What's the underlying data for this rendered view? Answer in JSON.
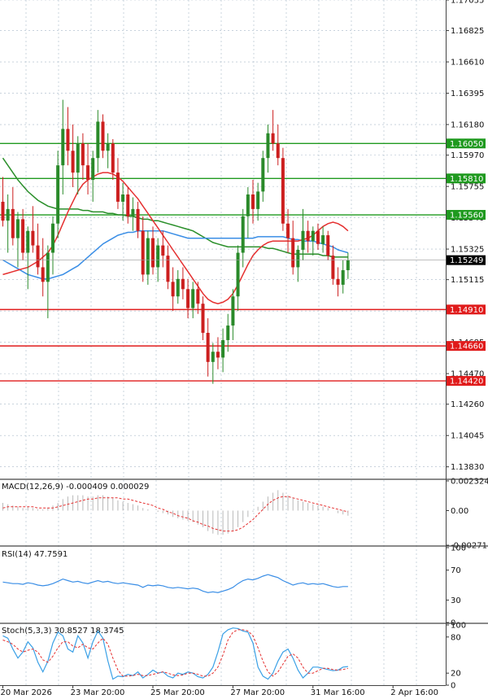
{
  "colors": {
    "bull": "#2a8a2a",
    "bear": "#cc1f1f",
    "ma_red": "#e53030",
    "ma_blue": "#3a8ee6",
    "ma_green": "#2a8f2a",
    "support": "#e01b1b",
    "resistance": "#1f9a1f",
    "current": "#000000",
    "grid": "#a8b8c8",
    "macd_hist": "#b8b8b8",
    "macd_signal": "#e53030",
    "rsi_line": "#3a8ee6",
    "stoch_main": "#3aa0e6",
    "stoch_signal": "#e53030"
  },
  "chart_data": [
    {
      "type": "candlestick",
      "ylim": [
        1.1375,
        1.17035
      ],
      "y_ticks": [
        "1.17035",
        "1.16825",
        "1.16610",
        "1.16395",
        "1.16180",
        "1.15970",
        "1.15755",
        "1.15540",
        "1.15325",
        "1.15115",
        "1.14900",
        "1.14685",
        "1.14470",
        "1.14260",
        "1.14045",
        "1.13830"
      ],
      "x_labels": [
        "20 Mar 2026",
        "23 Mar 20:00",
        "25 Mar 20:00",
        "27 Mar 20:00",
        "31 Mar 16:00",
        "2 Apr 16:00"
      ],
      "x_label_index": [
        0,
        14,
        30,
        46,
        62,
        78
      ],
      "current_price": "1.15249",
      "levels": [
        {
          "label": "1.16050",
          "value": 1.1605,
          "kind": "resistance"
        },
        {
          "label": "1.15810",
          "value": 1.1581,
          "kind": "resistance"
        },
        {
          "label": "1.15560",
          "value": 1.1556,
          "kind": "resistance"
        },
        {
          "label": "1.14910",
          "value": 1.1491,
          "kind": "support"
        },
        {
          "label": "1.14660",
          "value": 1.1466,
          "kind": "support"
        },
        {
          "label": "1.14420",
          "value": 1.1442,
          "kind": "support"
        }
      ],
      "candles": [
        [
          1.1565,
          1.1582,
          1.1548,
          1.1552
        ],
        [
          1.1552,
          1.157,
          1.153,
          1.156
        ],
        [
          1.156,
          1.1575,
          1.1535,
          1.154
        ],
        [
          1.154,
          1.1558,
          1.152,
          1.1553
        ],
        [
          1.1553,
          1.156,
          1.1525,
          1.153
        ],
        [
          1.153,
          1.1548,
          1.1505,
          1.1545
        ],
        [
          1.1545,
          1.1562,
          1.153,
          1.1535
        ],
        [
          1.1535,
          1.155,
          1.1515,
          1.152
        ],
        [
          1.152,
          1.154,
          1.15,
          1.151
        ],
        [
          1.151,
          1.1535,
          1.1485,
          1.153
        ],
        [
          1.153,
          1.1555,
          1.1515,
          1.155
        ],
        [
          1.155,
          1.16,
          1.154,
          1.159
        ],
        [
          1.159,
          1.1635,
          1.157,
          1.1615
        ],
        [
          1.1615,
          1.163,
          1.159,
          1.16
        ],
        [
          1.16,
          1.1618,
          1.1575,
          1.1585
        ],
        [
          1.1585,
          1.161,
          1.157,
          1.1605
        ],
        [
          1.1605,
          1.1612,
          1.158,
          1.159
        ],
        [
          1.159,
          1.1605,
          1.157,
          1.158
        ],
        [
          1.158,
          1.16,
          1.1565,
          1.1595
        ],
        [
          1.1595,
          1.1628,
          1.1585,
          1.162
        ],
        [
          1.162,
          1.1625,
          1.1595,
          1.16
        ],
        [
          1.16,
          1.1612,
          1.1588,
          1.1605
        ],
        [
          1.1605,
          1.1608,
          1.158,
          1.1585
        ],
        [
          1.1585,
          1.1595,
          1.156,
          1.1565
        ],
        [
          1.1565,
          1.1578,
          1.1552,
          1.157
        ],
        [
          1.157,
          1.1575,
          1.155,
          1.1555
        ],
        [
          1.1555,
          1.1568,
          1.1545,
          1.156
        ],
        [
          1.156,
          1.1565,
          1.154,
          1.1545
        ],
        [
          1.1545,
          1.1555,
          1.151,
          1.1515
        ],
        [
          1.1515,
          1.1545,
          1.1508,
          1.154
        ],
        [
          1.154,
          1.1548,
          1.1515,
          1.152
        ],
        [
          1.152,
          1.154,
          1.151,
          1.1535
        ],
        [
          1.1535,
          1.1545,
          1.152,
          1.1528
        ],
        [
          1.1528,
          1.1535,
          1.1505,
          1.151
        ],
        [
          1.151,
          1.152,
          1.149,
          1.15
        ],
        [
          1.15,
          1.1518,
          1.1495,
          1.1512
        ],
        [
          1.1512,
          1.152,
          1.1498,
          1.1505
        ],
        [
          1.1505,
          1.1512,
          1.1485,
          1.1492
        ],
        [
          1.1492,
          1.151,
          1.1485,
          1.1505
        ],
        [
          1.1505,
          1.151,
          1.1488,
          1.1495
        ],
        [
          1.1495,
          1.15,
          1.147,
          1.1475
        ],
        [
          1.1475,
          1.1485,
          1.1445,
          1.1455
        ],
        [
          1.1455,
          1.1468,
          1.144,
          1.1462
        ],
        [
          1.1462,
          1.1472,
          1.145,
          1.1458
        ],
        [
          1.1458,
          1.1478,
          1.1448,
          1.147
        ],
        [
          1.147,
          1.1488,
          1.1462,
          1.148
        ],
        [
          1.148,
          1.1505,
          1.147,
          1.15
        ],
        [
          1.15,
          1.1535,
          1.149,
          1.153
        ],
        [
          1.153,
          1.156,
          1.152,
          1.1555
        ],
        [
          1.1555,
          1.1575,
          1.154,
          1.157
        ],
        [
          1.157,
          1.158,
          1.155,
          1.156
        ],
        [
          1.156,
          1.1578,
          1.1552,
          1.1572
        ],
        [
          1.1572,
          1.16,
          1.1565,
          1.1595
        ],
        [
          1.1595,
          1.1618,
          1.1585,
          1.1612
        ],
        [
          1.1612,
          1.1628,
          1.16,
          1.1605
        ],
        [
          1.1605,
          1.1618,
          1.159,
          1.1595
        ],
        [
          1.1595,
          1.1602,
          1.1545,
          1.155
        ],
        [
          1.155,
          1.156,
          1.153,
          1.154
        ],
        [
          1.154,
          1.1552,
          1.1515,
          1.152
        ],
        [
          1.152,
          1.1535,
          1.151,
          1.1532
        ],
        [
          1.1532,
          1.156,
          1.1525,
          1.1545
        ],
        [
          1.1545,
          1.1552,
          1.153,
          1.1538
        ],
        [
          1.1538,
          1.1548,
          1.1528,
          1.1545
        ],
        [
          1.1545,
          1.155,
          1.1532,
          1.1536
        ],
        [
          1.1536,
          1.1548,
          1.153,
          1.1542
        ],
        [
          1.1542,
          1.1545,
          1.1525,
          1.1528
        ],
        [
          1.1528,
          1.1535,
          1.1508,
          1.1512
        ],
        [
          1.1512,
          1.152,
          1.15,
          1.1508
        ],
        [
          1.1508,
          1.1525,
          1.1502,
          1.1518
        ],
        [
          1.1518,
          1.153,
          1.1512,
          1.1525
        ]
      ],
      "moving_averages": [
        {
          "color": "ma_green",
          "values": [
            1.1595,
            1.159,
            1.1585,
            1.158,
            1.1576,
            1.1572,
            1.1569,
            1.1566,
            1.1564,
            1.1562,
            1.1561,
            1.156,
            1.156,
            1.156,
            1.156,
            1.156,
            1.1559,
            1.1559,
            1.1558,
            1.1558,
            1.1558,
            1.1557,
            1.1557,
            1.1556,
            1.1556,
            1.1555,
            1.1555,
            1.1554,
            1.1553,
            1.1553,
            1.1552,
            1.1552,
            1.1551,
            1.155,
            1.1549,
            1.1548,
            1.1547,
            1.1546,
            1.1545,
            1.1543,
            1.1541,
            1.1539,
            1.1537,
            1.1536,
            1.1535,
            1.1534,
            1.1534,
            1.1534,
            1.1534,
            1.1534,
            1.1534,
            1.1534,
            1.1534,
            1.1533,
            1.1533,
            1.1532,
            1.1531,
            1.153,
            1.1529,
            1.1529,
            1.1529,
            1.1529,
            1.1529,
            1.1529,
            1.1528,
            1.1528,
            1.1527,
            1.1527,
            1.1527,
            1.1527
          ]
        },
        {
          "color": "ma_blue",
          "values": [
            1.1525,
            1.1523,
            1.1521,
            1.1519,
            1.1517,
            1.1515,
            1.1514,
            1.1513,
            1.1512,
            1.1512,
            1.1513,
            1.1514,
            1.1515,
            1.1517,
            1.1519,
            1.1521,
            1.1524,
            1.1527,
            1.153,
            1.1533,
            1.1536,
            1.1538,
            1.154,
            1.1542,
            1.1543,
            1.1544,
            1.1544,
            1.1545,
            1.1545,
            1.1545,
            1.1545,
            1.1545,
            1.1545,
            1.1544,
            1.1543,
            1.1542,
            1.1541,
            1.154,
            1.154,
            1.154,
            1.154,
            1.154,
            1.154,
            1.154,
            1.154,
            1.154,
            1.154,
            1.154,
            1.154,
            1.154,
            1.154,
            1.1541,
            1.1541,
            1.1541,
            1.1541,
            1.1541,
            1.1541,
            1.154,
            1.1539,
            1.1539,
            1.1538,
            1.1538,
            1.1538,
            1.1537,
            1.1536,
            1.1535,
            1.1534,
            1.1532,
            1.1531,
            1.153
          ]
        },
        {
          "color": "ma_red",
          "values": [
            1.1515,
            1.1516,
            1.1517,
            1.1518,
            1.1519,
            1.152,
            1.1522,
            1.1524,
            1.1527,
            1.153,
            1.1535,
            1.1542,
            1.155,
            1.1558,
            1.1565,
            1.1572,
            1.1577,
            1.158,
            1.1582,
            1.1584,
            1.1585,
            1.1585,
            1.1584,
            1.1582,
            1.1579,
            1.1575,
            1.1571,
            1.1567,
            1.1562,
            1.1557,
            1.1552,
            1.1547,
            1.1542,
            1.1537,
            1.1532,
            1.1527,
            1.1522,
            1.1517,
            1.1512,
            1.1507,
            1.1502,
            1.1498,
            1.1496,
            1.1495,
            1.1496,
            1.1498,
            1.1502,
            1.1508,
            1.1515,
            1.1522,
            1.1528,
            1.1532,
            1.1535,
            1.1537,
            1.1538,
            1.1538,
            1.1538,
            1.1538,
            1.1538,
            1.1538,
            1.1539,
            1.154,
            1.1542,
            1.1545,
            1.1548,
            1.155,
            1.1551,
            1.155,
            1.1548,
            1.1545
          ]
        }
      ]
    },
    {
      "type": "bar",
      "title": "MACD(12,26,9) -0.000409 0.000029",
      "y_ticks": [
        "0.002324",
        "0.00",
        "-0.00271"
      ],
      "ylim": [
        -0.00271,
        0.002324
      ],
      "histogram": [
        0.0006,
        0.0005,
        0.0004,
        0.0003,
        0.0002,
        0.0003,
        0.0002,
        0.0001,
        0.0001,
        0.0002,
        0.0004,
        0.0006,
        0.0009,
        0.0011,
        0.0012,
        0.0012,
        0.0012,
        0.0011,
        0.0011,
        0.0012,
        0.0012,
        0.0011,
        0.001,
        0.0008,
        0.0007,
        0.0006,
        0.0005,
        0.0004,
        0.0002,
        0.0001,
        0.0,
        -0.0001,
        -0.0002,
        -0.0003,
        -0.0005,
        -0.0006,
        -0.0007,
        -0.0008,
        -0.0009,
        -0.0011,
        -0.0013,
        -0.0016,
        -0.0018,
        -0.0019,
        -0.0019,
        -0.0018,
        -0.0016,
        -0.0013,
        -0.0009,
        -0.0005,
        -0.0001,
        0.0003,
        0.0007,
        0.0011,
        0.0014,
        0.0016,
        0.0014,
        0.0012,
        0.001,
        0.0008,
        0.0007,
        0.0006,
        0.0005,
        0.0004,
        0.0003,
        0.0002,
        0.0,
        -0.0002,
        -0.0003,
        -0.0004
      ],
      "signal": [
        0.0002,
        0.0003,
        0.0003,
        0.0003,
        0.0003,
        0.0003,
        0.0003,
        0.0002,
        0.0002,
        0.0002,
        0.0002,
        0.0003,
        0.0004,
        0.0005,
        0.0006,
        0.0007,
        0.0008,
        0.0009,
        0.0009,
        0.001,
        0.001,
        0.001,
        0.001,
        0.001,
        0.0009,
        0.0009,
        0.0008,
        0.0007,
        0.0006,
        0.0005,
        0.0004,
        0.0002,
        0.0001,
        -0.0001,
        -0.0002,
        -0.0004,
        -0.0005,
        -0.0006,
        -0.0008,
        -0.0009,
        -0.0011,
        -0.0012,
        -0.0014,
        -0.0015,
        -0.0016,
        -0.0016,
        -0.0016,
        -0.0015,
        -0.0013,
        -0.001,
        -0.0007,
        -0.0003,
        0.0001,
        0.0005,
        0.0008,
        0.001,
        0.0011,
        0.0011,
        0.001,
        0.0009,
        0.0008,
        0.0007,
        0.0006,
        0.0005,
        0.0004,
        0.0003,
        0.0002,
        0.0001,
        0.0,
        -0.0001
      ]
    },
    {
      "type": "line",
      "title": "RSI(14) 47.7591",
      "y_ticks": [
        "100",
        "70",
        "30",
        "0"
      ],
      "ylim": [
        0,
        100
      ],
      "values": [
        54,
        53,
        52,
        52,
        51,
        53,
        52,
        50,
        49,
        50,
        52,
        55,
        58,
        56,
        54,
        55,
        53,
        52,
        54,
        56,
        54,
        55,
        53,
        52,
        53,
        52,
        51,
        50,
        47,
        50,
        49,
        50,
        49,
        47,
        46,
        47,
        46,
        45,
        46,
        45,
        42,
        40,
        41,
        40,
        42,
        44,
        47,
        52,
        56,
        58,
        57,
        59,
        62,
        64,
        62,
        60,
        56,
        53,
        50,
        52,
        53,
        51,
        52,
        51,
        52,
        50,
        48,
        47,
        48,
        48
      ]
    },
    {
      "type": "line",
      "title": "Stoch(5,3,3) 30.8527 18.3745",
      "y_ticks": [
        "100",
        "80",
        "20",
        "0"
      ],
      "ylim": [
        0,
        100
      ],
      "main": [
        82,
        78,
        60,
        45,
        55,
        72,
        62,
        38,
        22,
        40,
        70,
        88,
        82,
        60,
        55,
        82,
        70,
        45,
        72,
        90,
        78,
        40,
        10,
        15,
        14,
        18,
        16,
        22,
        12,
        18,
        25,
        20,
        22,
        15,
        12,
        20,
        18,
        22,
        20,
        14,
        12,
        18,
        30,
        55,
        85,
        92,
        95,
        94,
        90,
        88,
        70,
        30,
        15,
        10,
        20,
        40,
        55,
        60,
        45,
        25,
        12,
        20,
        30,
        30,
        28,
        26,
        24,
        25,
        30,
        31
      ],
      "signal": [
        75,
        72,
        68,
        60,
        55,
        58,
        60,
        55,
        42,
        38,
        48,
        62,
        72,
        72,
        65,
        62,
        68,
        62,
        60,
        70,
        78,
        68,
        45,
        25,
        15,
        15,
        16,
        18,
        16,
        16,
        18,
        20,
        22,
        20,
        17,
        16,
        17,
        20,
        20,
        18,
        15,
        15,
        20,
        30,
        50,
        75,
        88,
        92,
        92,
        90,
        82,
        62,
        40,
        22,
        15,
        22,
        35,
        48,
        52,
        45,
        30,
        20,
        20,
        24,
        28,
        28,
        26,
        25,
        26,
        28
      ]
    }
  ]
}
